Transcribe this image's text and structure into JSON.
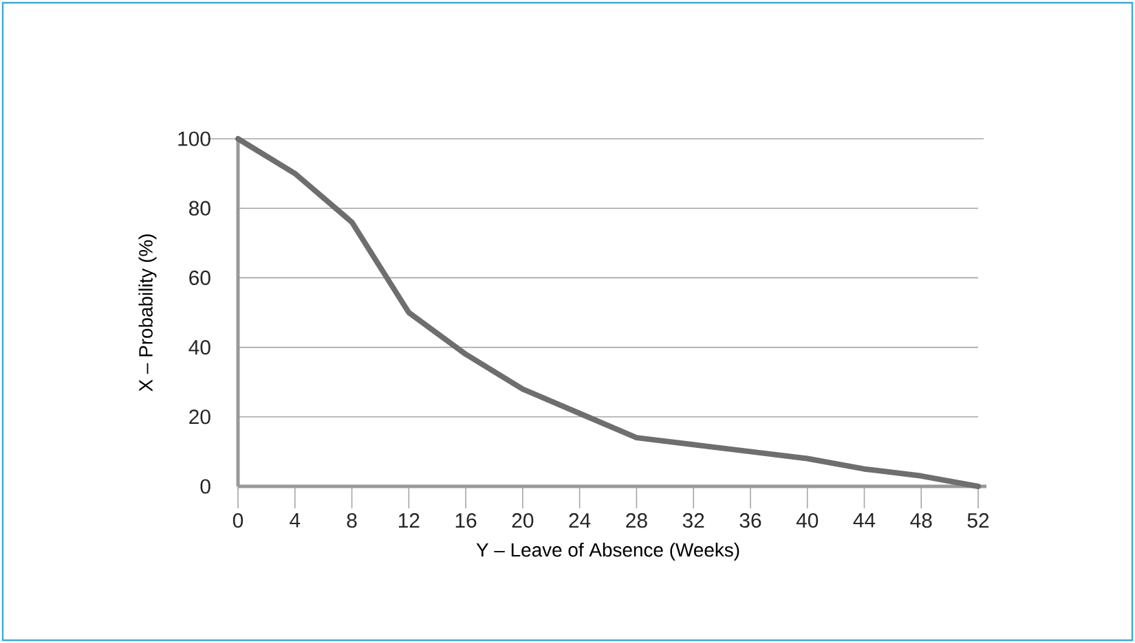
{
  "chart_data": {
    "type": "line",
    "xlabel": "Y – Leave of Absence (Weeks)",
    "ylabel": "X – Probability (%)",
    "x": [
      0,
      4,
      8,
      12,
      16,
      20,
      24,
      28,
      32,
      36,
      40,
      44,
      48,
      52
    ],
    "series": [
      {
        "color": "#6e6e6e",
        "values": [
          100,
          90,
          76,
          50,
          38,
          28,
          21,
          14,
          12,
          10,
          8,
          5,
          3,
          0
        ]
      }
    ],
    "xlim": [
      0,
      52
    ],
    "ylim": [
      0,
      100
    ],
    "xticks": [
      0,
      4,
      8,
      12,
      16,
      20,
      24,
      28,
      32,
      36,
      40,
      44,
      48,
      52
    ],
    "yticks": [
      0,
      20,
      40,
      60,
      80,
      100
    ],
    "grid": "y",
    "marker": "none",
    "line_style": "solid"
  }
}
